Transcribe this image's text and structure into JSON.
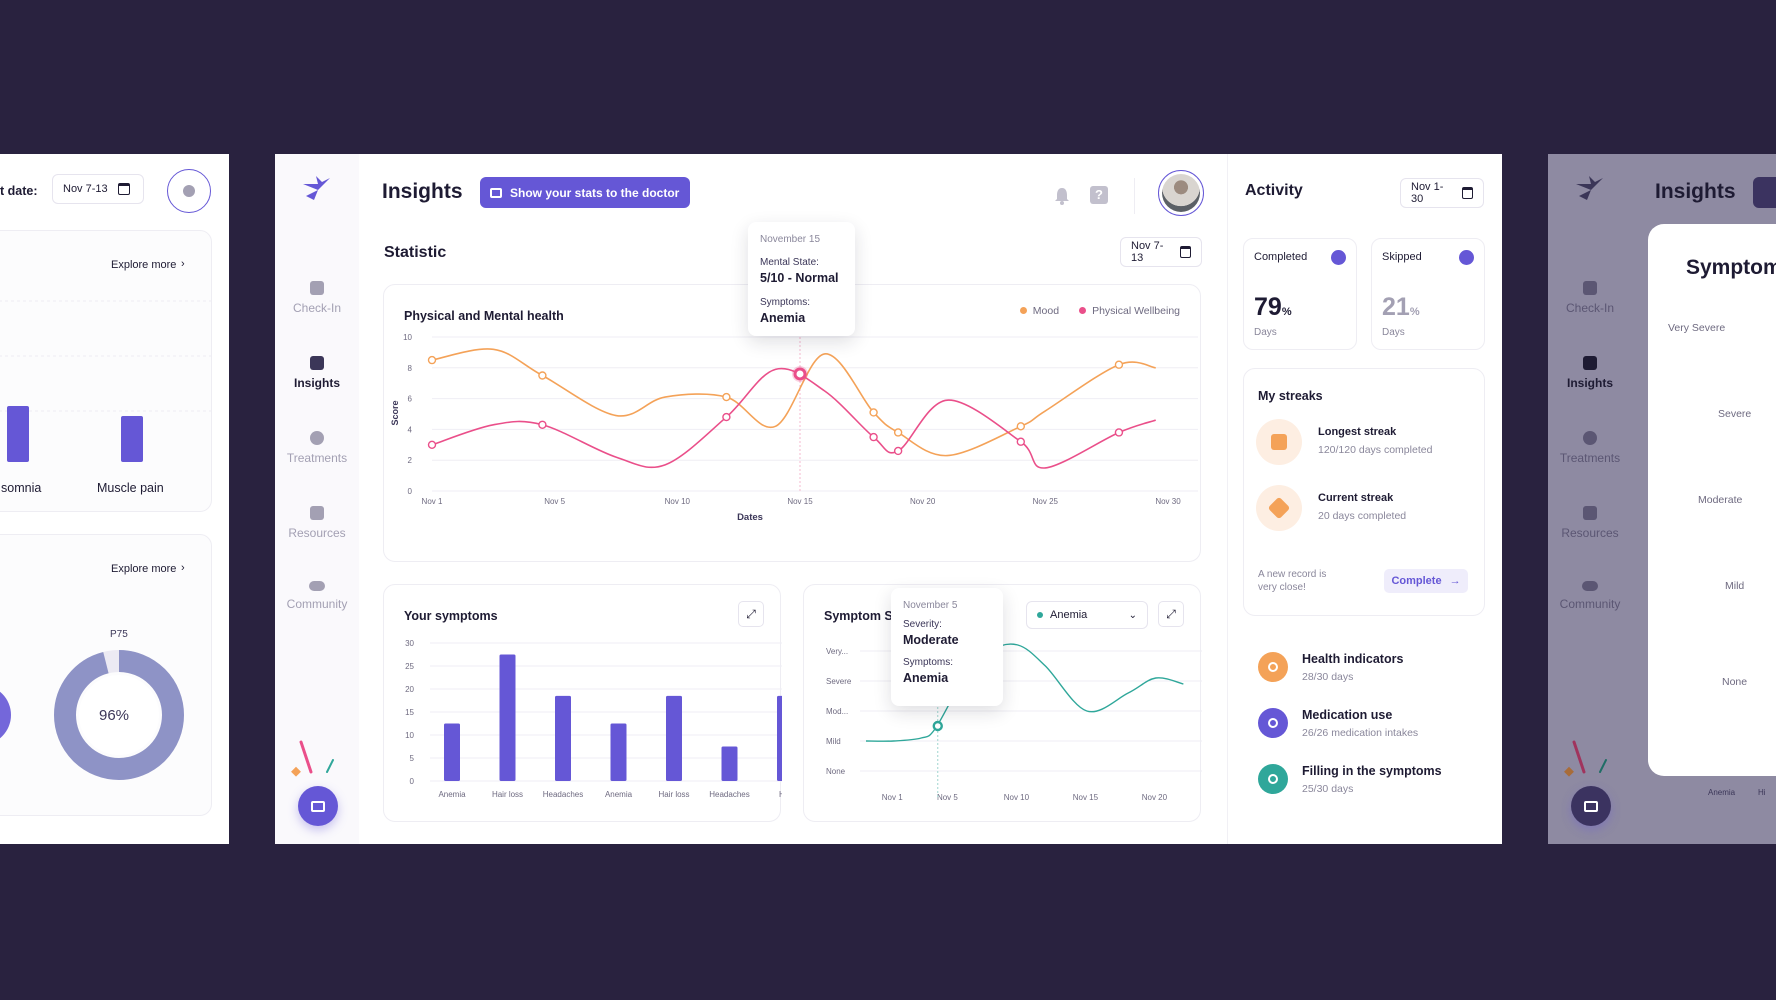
{
  "left": {
    "date_label": "t date:",
    "date_value": "Nov 7-13",
    "explore_1": "Explore more",
    "explore_2": "Explore more",
    "bar_labels": [
      "somnia",
      "Muscle pain"
    ],
    "donut_label": "P75",
    "donut_value": "96%",
    "donut_percent": 96
  },
  "sidebar": {
    "items": [
      {
        "label": "Check-In",
        "icon": "clipboard-check-icon"
      },
      {
        "label": "Insights",
        "icon": "bar-chart-icon"
      },
      {
        "label": "Treatments",
        "icon": "pill-icon"
      },
      {
        "label": "Resources",
        "icon": "book-icon"
      },
      {
        "label": "Community",
        "icon": "people-icon"
      }
    ],
    "active": "Insights"
  },
  "header": {
    "title": "Insights",
    "cta_label": "Show your stats to the doctor"
  },
  "statistic": {
    "title": "Statistic",
    "date_value": "Nov 7-13"
  },
  "tooltip_main": {
    "date": "November 15",
    "state_label": "Mental State:",
    "state_value": "5/10 - Normal",
    "symptoms_label": "Symptoms:",
    "symptoms_value": "Anemia"
  },
  "tooltip_symptom": {
    "date": "November 5",
    "severity_label": "Severity:",
    "severity_value": "Moderate",
    "symptoms_label": "Symptoms:",
    "symptoms_value": "Anemia"
  },
  "symptom_filter": "Anemia",
  "activity": {
    "title": "Activity",
    "date_value": "Nov 1-30",
    "completed_label": "Completed",
    "completed_value": "79",
    "completed_unit": "%",
    "completed_sub": "Days",
    "skipped_label": "Skipped",
    "skipped_value": "21",
    "skipped_unit": "%",
    "skipped_sub": "Days",
    "streaks_title": "My streaks",
    "longest_title": "Longest streak",
    "longest_sub": "120/120 days completed",
    "current_title": "Current streak",
    "current_sub": "20 days completed",
    "record_note": "A new record is very close!",
    "complete_label": "Complete",
    "indicators": [
      {
        "title": "Health indicators",
        "sub": "28/30 days",
        "color": "#f4a258"
      },
      {
        "title": "Medication use",
        "sub": "26/26 medication intakes",
        "color": "#6557d6"
      },
      {
        "title": "Filling in the symptoms",
        "sub": "25/30 days",
        "color": "#2fa79a"
      }
    ]
  },
  "right": {
    "title": "Insights",
    "card_title": "Symptom",
    "levels": [
      "Very Severe",
      "Severe",
      "Moderate",
      "Mild",
      "None"
    ],
    "bottom_labels": [
      "Anemia",
      "Hi"
    ]
  },
  "chart_data": [
    {
      "type": "line",
      "title": "Physical and Mental health",
      "xlabel": "Dates",
      "ylabel": "Score",
      "ylim": [
        0,
        10
      ],
      "yticks": [
        0,
        2,
        4,
        6,
        8,
        10
      ],
      "x_ticks": [
        "Nov 1",
        "Nov 5",
        "Nov 10",
        "Nov 15",
        "Nov 20",
        "Nov 25",
        "Nov 30"
      ],
      "legend_position": "top-right",
      "series": [
        {
          "name": "Mood",
          "color": "#f4a258",
          "x": [
            1,
            3.5,
            5.5,
            8.5,
            10.5,
            13,
            15,
            17,
            19,
            20,
            22,
            25,
            26,
            29,
            30.5
          ],
          "y": [
            8.5,
            9.2,
            7.5,
            4.9,
            6.1,
            6.1,
            4.2,
            8.9,
            5.1,
            3.8,
            2.3,
            4.2,
            5.2,
            8.2,
            8.0
          ]
        },
        {
          "name": "Physical Wellbeing",
          "color": "#ea4f8a",
          "x": [
            1,
            3.5,
            5.5,
            8.5,
            10.5,
            13,
            15,
            17,
            19,
            20,
            22,
            25,
            26,
            29,
            30.5
          ],
          "y": [
            3.0,
            4.3,
            4.3,
            2.2,
            1.7,
            4.8,
            7.9,
            6.5,
            3.5,
            2.6,
            5.9,
            3.2,
            1.5,
            3.8,
            4.6
          ]
        }
      ]
    },
    {
      "type": "bar",
      "title": "Your symptoms",
      "ylim": [
        0,
        30
      ],
      "yticks": [
        0,
        5,
        10,
        15,
        20,
        25,
        30
      ],
      "categories": [
        "Anemia",
        "Hair loss",
        "Headaches",
        "Anemia",
        "Hair loss",
        "Headaches",
        "Hai"
      ],
      "values": [
        12.5,
        27.5,
        18.5,
        12.5,
        18.5,
        7.5,
        18.5
      ],
      "color": "#6557d6"
    },
    {
      "type": "line",
      "title": "Symptom S",
      "levels": [
        "None",
        "Mild",
        "Mod...",
        "Severe",
        "Very..."
      ],
      "x_ticks": [
        "Nov 1",
        "Nov 5",
        "Nov 10",
        "Nov 15",
        "Nov 20"
      ],
      "series": [
        {
          "name": "Anemia",
          "color": "#2fa79a",
          "x": [
            0,
            2,
            4,
            5,
            7,
            9,
            11,
            13,
            16,
            19,
            21,
            23
          ],
          "y": [
            1.0,
            1.0,
            1.1,
            1.4,
            3.0,
            4.0,
            4.2,
            3.5,
            2.0,
            2.6,
            3.1,
            2.9
          ]
        }
      ]
    }
  ]
}
